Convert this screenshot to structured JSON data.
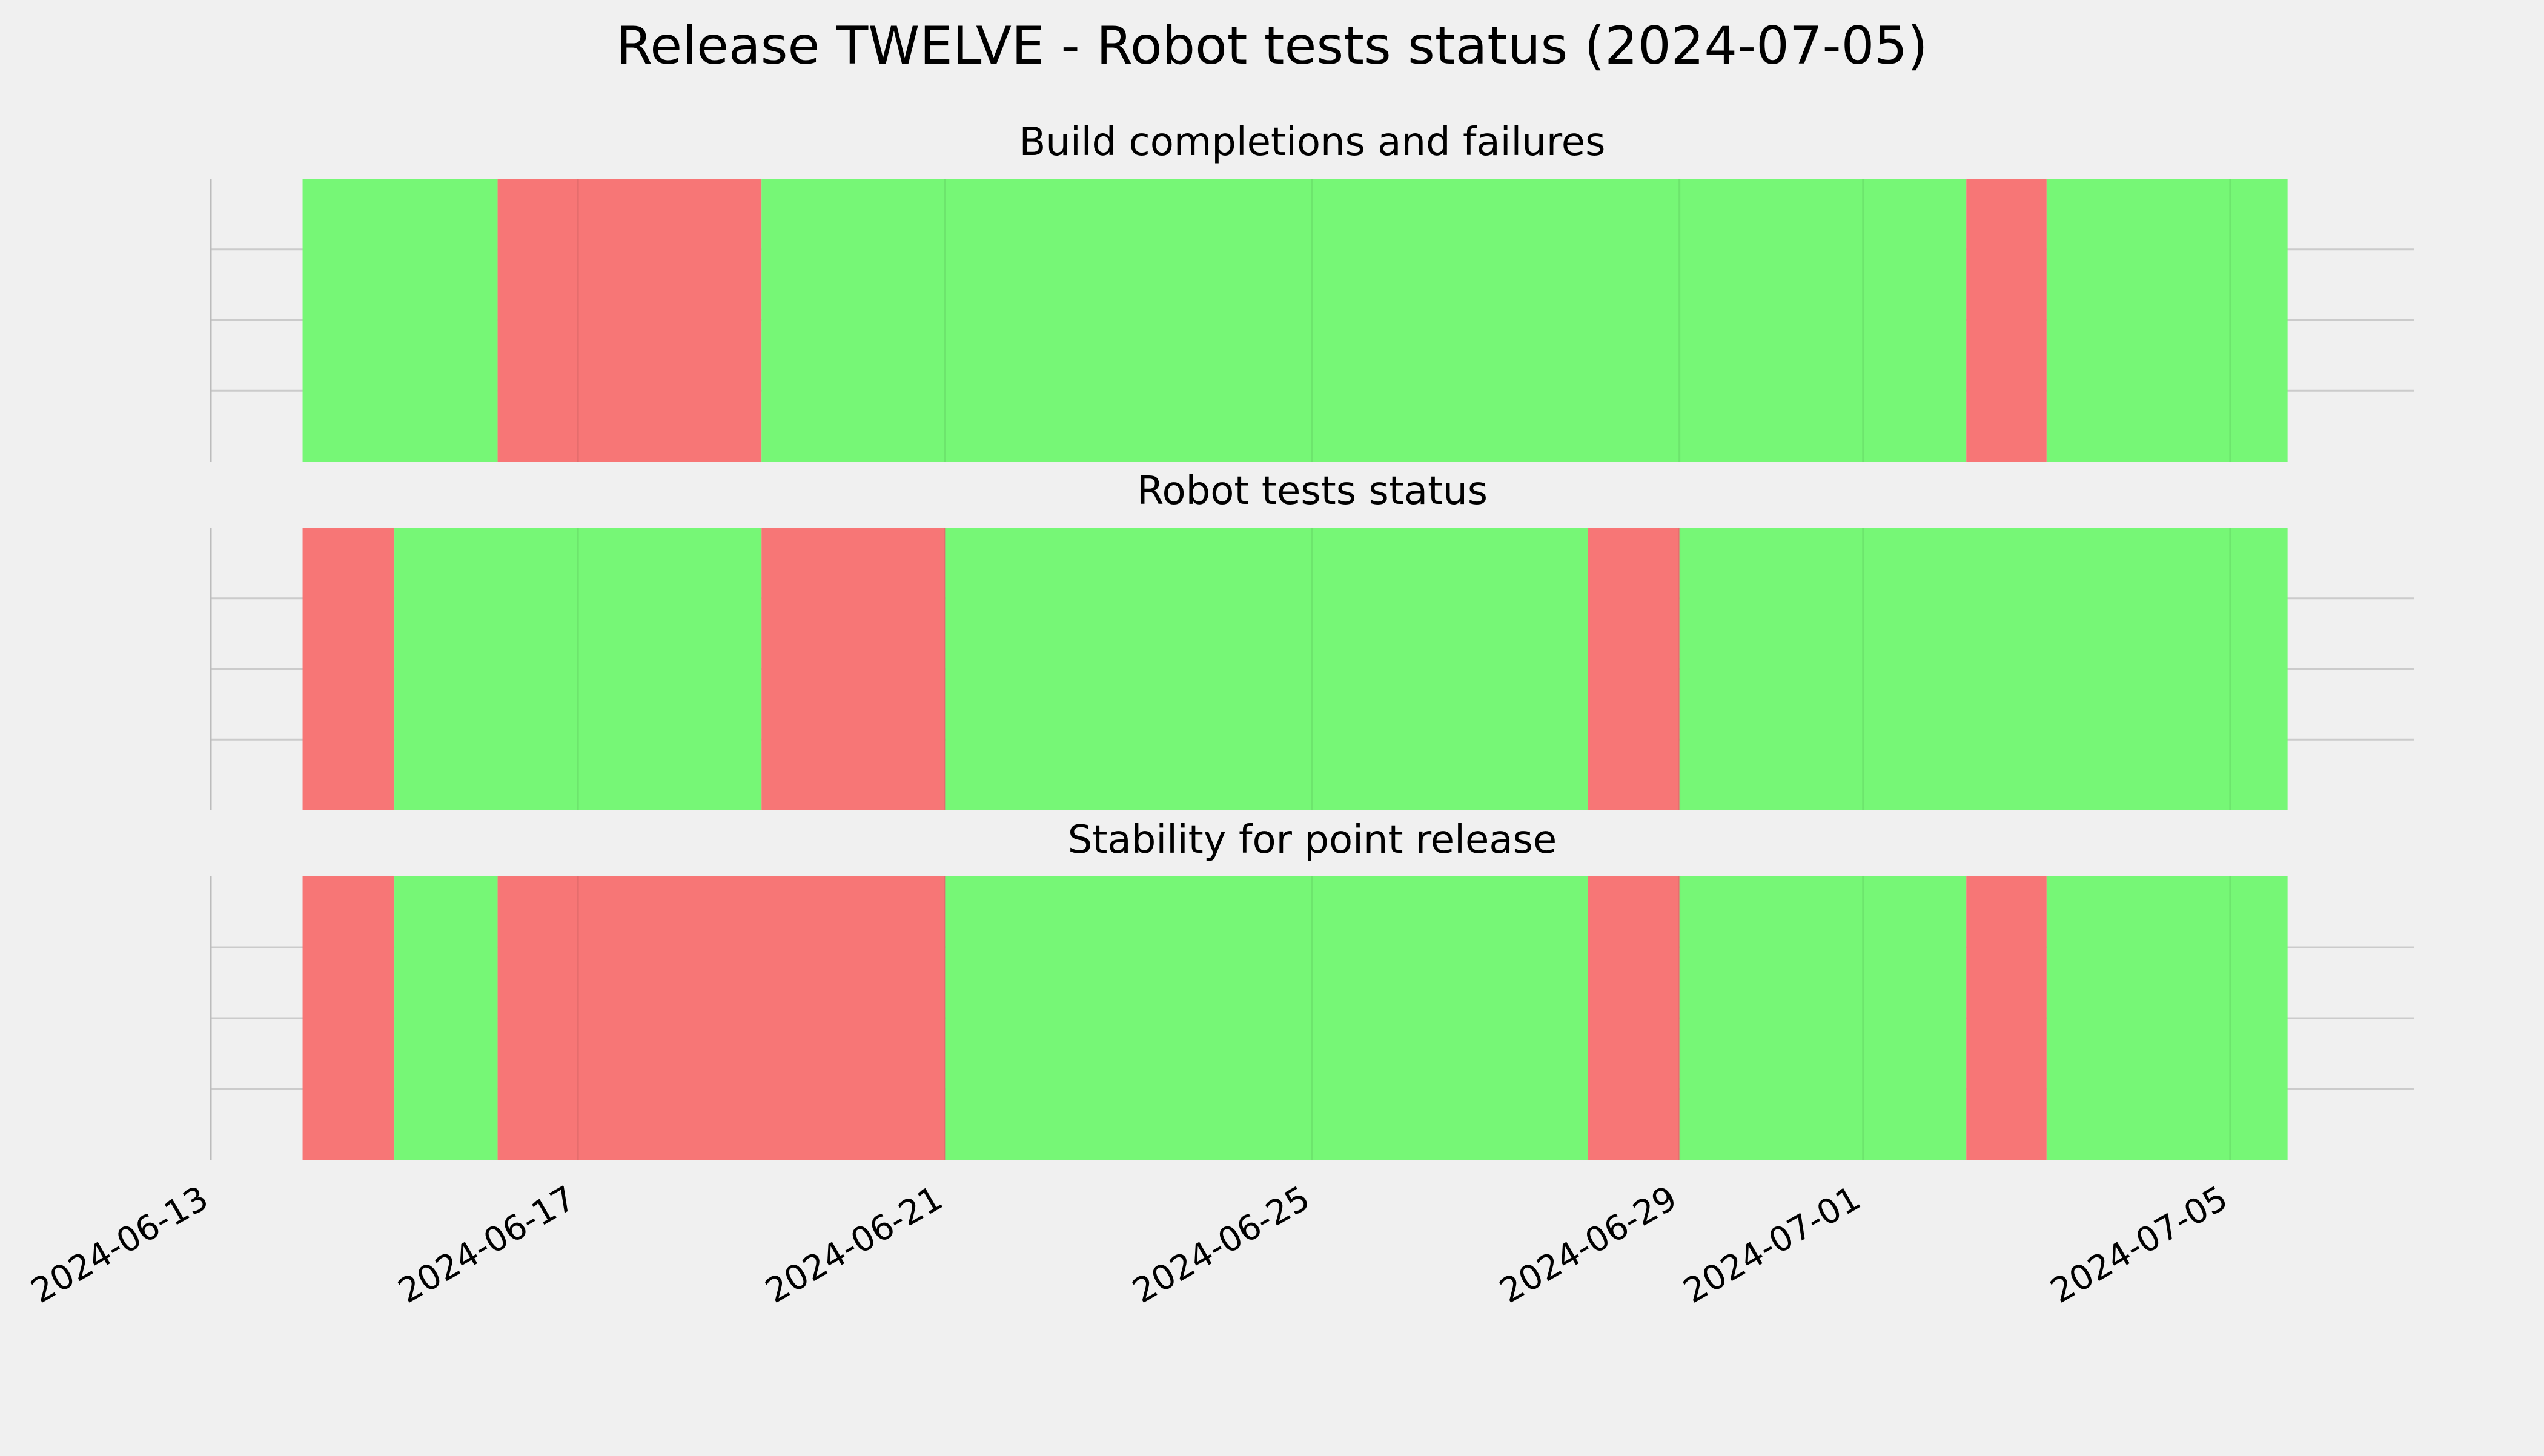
{
  "chart_data": {
    "type": "timeline",
    "title": "Release TWELVE - Robot tests status (2024-07-05)",
    "x_domain": [
      "2024-06-13",
      "2024-07-07"
    ],
    "x_ticks": [
      "2024-06-13",
      "2024-06-17",
      "2024-06-21",
      "2024-06-25",
      "2024-06-29",
      "2024-07-01",
      "2024-07-05"
    ],
    "grid": true,
    "status_colors": {
      "pass": "#76f776",
      "fail": "#f77676"
    },
    "panels": [
      {
        "title": "Build completions and failures",
        "segments": [
          {
            "start": "2024-06-14",
            "end": "2024-06-16 03:00",
            "status": "pass"
          },
          {
            "start": "2024-06-16 03:00",
            "end": "2024-06-19",
            "status": "fail"
          },
          {
            "start": "2024-06-19",
            "end": "2024-07-02 03:00",
            "status": "pass"
          },
          {
            "start": "2024-07-02 03:00",
            "end": "2024-07-03",
            "status": "fail"
          },
          {
            "start": "2024-07-03",
            "end": "2024-07-05 15:00",
            "status": "pass"
          }
        ]
      },
      {
        "title": "Robot tests status",
        "segments": [
          {
            "start": "2024-06-14",
            "end": "2024-06-15",
            "status": "fail"
          },
          {
            "start": "2024-06-15",
            "end": "2024-06-19",
            "status": "pass"
          },
          {
            "start": "2024-06-19",
            "end": "2024-06-21",
            "status": "fail"
          },
          {
            "start": "2024-06-21",
            "end": "2024-06-28",
            "status": "pass"
          },
          {
            "start": "2024-06-28",
            "end": "2024-06-29",
            "status": "fail"
          },
          {
            "start": "2024-06-29",
            "end": "2024-07-05 15:00",
            "status": "pass"
          }
        ]
      },
      {
        "title": "Stability for point release",
        "segments": [
          {
            "start": "2024-06-14",
            "end": "2024-06-15",
            "status": "fail"
          },
          {
            "start": "2024-06-15",
            "end": "2024-06-16 03:00",
            "status": "pass"
          },
          {
            "start": "2024-06-16 03:00",
            "end": "2024-06-21",
            "status": "fail"
          },
          {
            "start": "2024-06-21",
            "end": "2024-06-28",
            "status": "pass"
          },
          {
            "start": "2024-06-28",
            "end": "2024-06-29",
            "status": "fail"
          },
          {
            "start": "2024-06-29",
            "end": "2024-07-02 03:00",
            "status": "pass"
          },
          {
            "start": "2024-07-02 03:00",
            "end": "2024-07-03",
            "status": "fail"
          },
          {
            "start": "2024-07-03",
            "end": "2024-07-05 15:00",
            "status": "pass"
          }
        ]
      }
    ]
  }
}
